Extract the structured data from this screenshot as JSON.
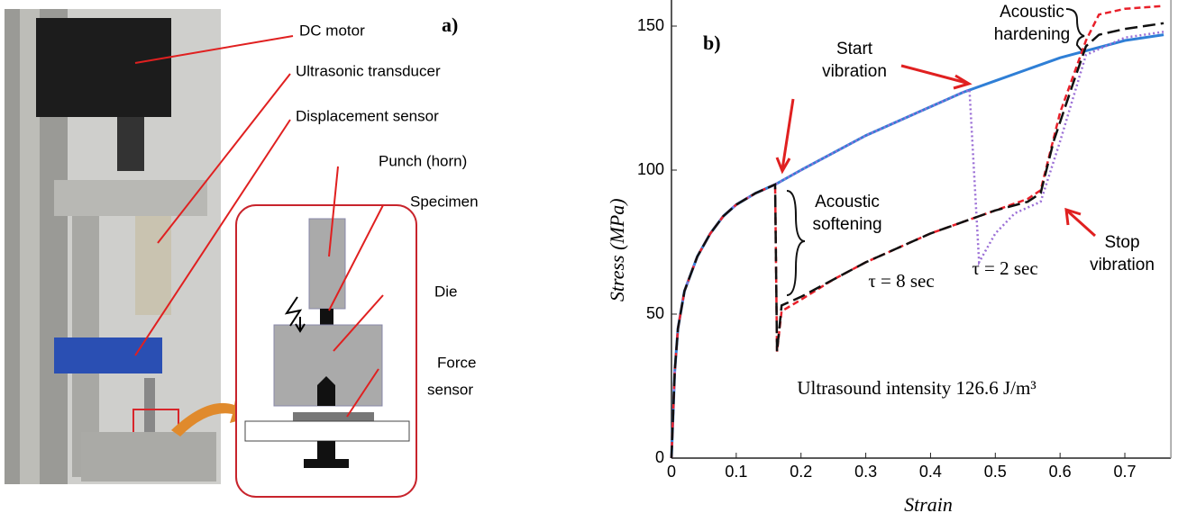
{
  "panel_a": {
    "label": "a)",
    "callouts": {
      "dc_motor": "DC motor",
      "transducer": "Ultrasonic transducer",
      "displacement": "Displacement sensor",
      "punch": "Punch (horn)",
      "specimen": "Specimen",
      "die": "Die",
      "force_sensor": [
        "Force",
        "sensor"
      ]
    }
  },
  "chart_data": {
    "type": "line",
    "panel_label": "b)",
    "xlabel": "Strain",
    "ylabel": "Stress (MPa)",
    "xlim": [
      0,
      0.76
    ],
    "ylim": [
      0,
      157
    ],
    "xticks": [
      0,
      0.1,
      0.2,
      0.3,
      0.4,
      0.5,
      0.6,
      0.7
    ],
    "yticks": [
      0,
      50,
      100,
      150
    ],
    "series": [
      {
        "color": "#2f7fd6",
        "style": "solid",
        "x": [
          0,
          0.005,
          0.01,
          0.02,
          0.04,
          0.06,
          0.08,
          0.1,
          0.13,
          0.16,
          0.2,
          0.25,
          0.3,
          0.35,
          0.4,
          0.45,
          0.5,
          0.55,
          0.6,
          0.65,
          0.7,
          0.76
        ],
        "values": [
          0,
          30,
          45,
          58,
          70,
          78,
          84,
          88,
          92,
          95,
          100,
          106,
          112,
          117,
          122,
          127,
          131,
          135,
          139,
          142,
          145,
          147
        ]
      },
      {
        "color": "#9b6fd6",
        "style": "dotted",
        "x": [
          0,
          0.005,
          0.01,
          0.02,
          0.04,
          0.06,
          0.08,
          0.1,
          0.13,
          0.16,
          0.2,
          0.25,
          0.3,
          0.35,
          0.4,
          0.46,
          0.475,
          0.5,
          0.53,
          0.57,
          0.6,
          0.64,
          0.7,
          0.76
        ],
        "values": [
          0,
          30,
          45,
          58,
          70,
          78,
          84,
          88,
          92,
          95,
          100,
          106,
          112,
          117,
          122,
          128,
          68,
          78,
          85,
          89,
          110,
          140,
          146,
          148
        ]
      },
      {
        "color": "#e8202a",
        "style": "dashed",
        "x": [
          0,
          0.005,
          0.01,
          0.02,
          0.04,
          0.06,
          0.08,
          0.1,
          0.13,
          0.16,
          0.163,
          0.17,
          0.2,
          0.25,
          0.3,
          0.35,
          0.4,
          0.45,
          0.5,
          0.55,
          0.57,
          0.6,
          0.64,
          0.66,
          0.7,
          0.76
        ],
        "values": [
          0,
          30,
          45,
          58,
          70,
          78,
          84,
          88,
          92,
          95,
          37,
          51,
          55,
          62,
          68,
          73,
          78,
          82,
          86,
          90,
          93,
          120,
          145,
          154,
          156,
          157
        ]
      },
      {
        "color": "#111111",
        "style": "longdash",
        "x": [
          0,
          0.005,
          0.01,
          0.02,
          0.04,
          0.06,
          0.08,
          0.1,
          0.13,
          0.16,
          0.163,
          0.17,
          0.2,
          0.25,
          0.3,
          0.35,
          0.4,
          0.45,
          0.5,
          0.55,
          0.57,
          0.59,
          0.62,
          0.64,
          0.66,
          0.7,
          0.76
        ],
        "values": [
          0,
          30,
          45,
          58,
          70,
          78,
          84,
          88,
          92,
          95,
          37,
          53,
          56,
          62,
          68,
          73,
          78,
          82,
          86,
          89,
          92,
          110,
          130,
          143,
          147,
          149,
          151
        ]
      }
    ],
    "annotations": [
      {
        "lines": [
          "Start",
          "vibration"
        ]
      },
      {
        "lines": [
          "Acoustic",
          "softening"
        ]
      },
      {
        "lines": [
          "Acoustic",
          "hardening"
        ]
      },
      {
        "lines": [
          "Stop",
          "vibration"
        ]
      },
      {
        "lines": [
          "τ = 8 sec"
        ]
      },
      {
        "lines": [
          "τ = 2 sec"
        ]
      },
      {
        "lines": [
          "Ultrasound intensity 126.6 J/m³"
        ]
      }
    ]
  }
}
